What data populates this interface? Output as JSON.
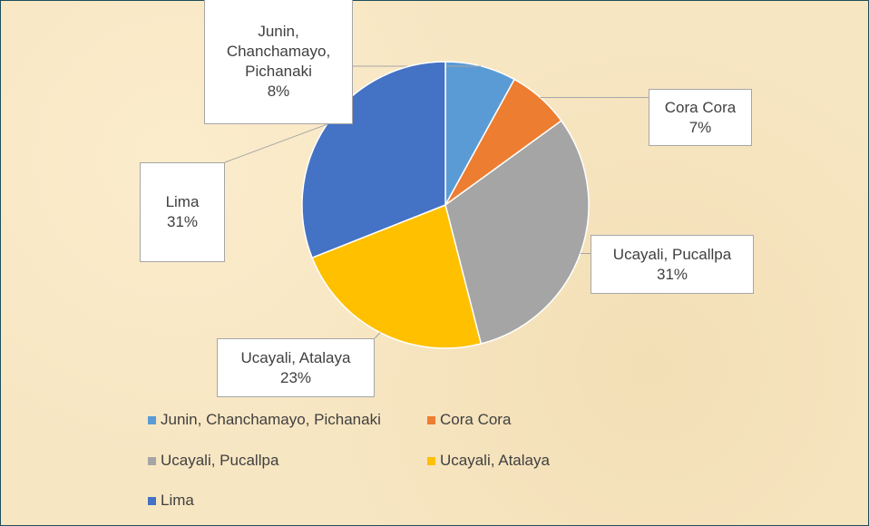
{
  "chart_data": {
    "type": "pie",
    "categories": [
      "Junin, Chanchamayo, Pichanaki",
      "Cora Cora",
      "Ucayali, Pucallpa",
      "Ucayali, Atalaya",
      "Lima"
    ],
    "values": [
      8,
      7,
      31,
      23,
      31
    ],
    "value_labels": [
      "8%",
      "7%",
      "31%",
      "23%",
      "31%"
    ],
    "colors": [
      "#5b9bd5",
      "#ed7d31",
      "#a5a5a5",
      "#ffc000",
      "#4472c4"
    ],
    "legend": "bottom"
  }
}
